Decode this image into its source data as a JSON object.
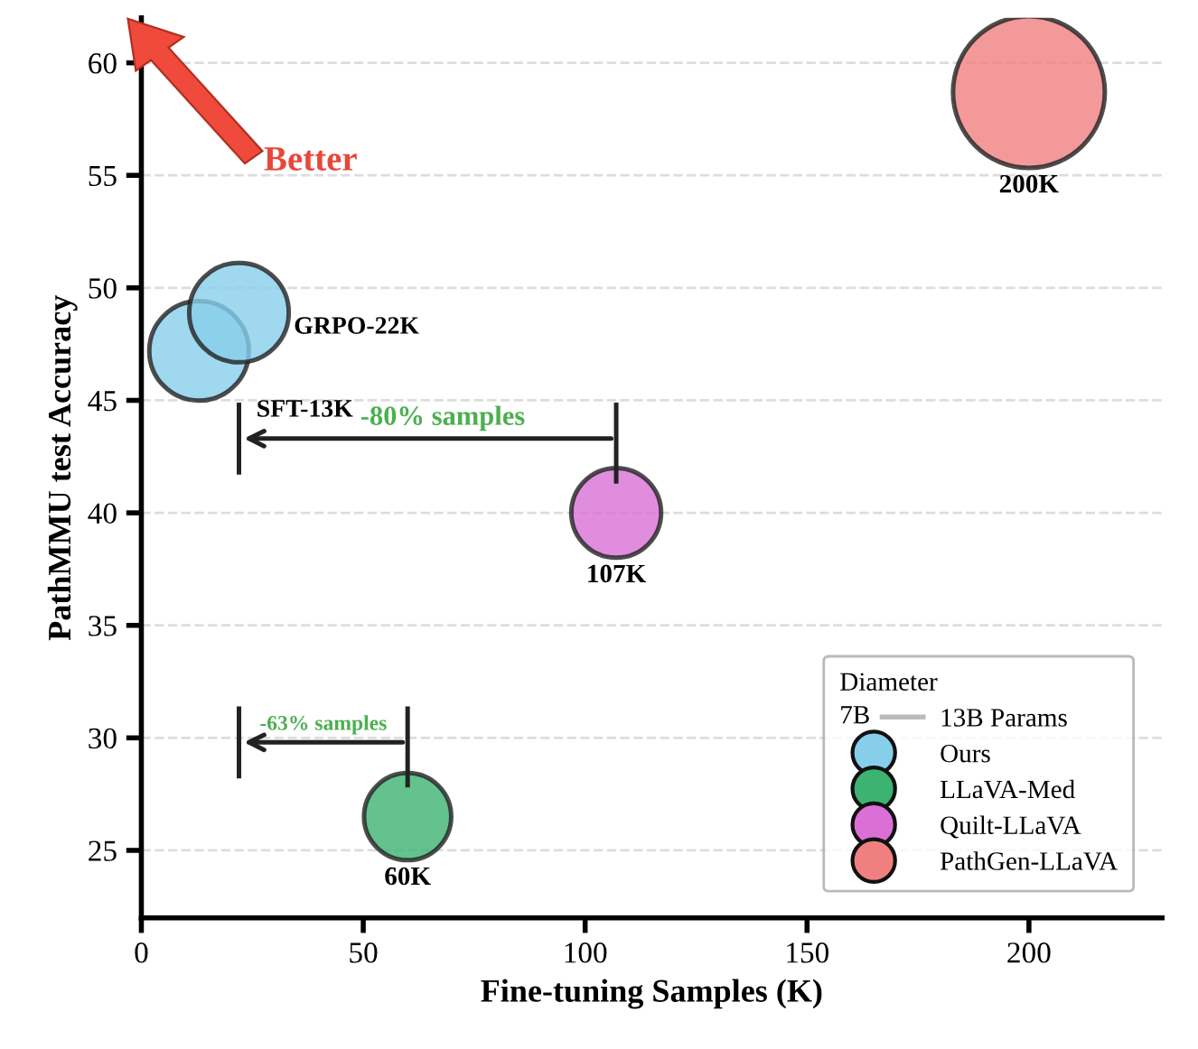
{
  "chart_data": {
    "type": "bubble",
    "xlabel": "Fine-tuning Samples (K)",
    "ylabel": "PathMMU test Accuracy",
    "legend_title": "Diameter",
    "xlim": [
      0,
      230
    ],
    "ylim": [
      22,
      62
    ],
    "xticks": [
      0,
      50,
      100,
      150,
      200
    ],
    "yticks": [
      25,
      30,
      35,
      40,
      45,
      50,
      55,
      60
    ],
    "grid": "y",
    "legend": "bottom right",
    "marker": "circle",
    "series": [
      {
        "name": "Ours",
        "color": "#87ceeb",
        "x": [
          13,
          22
        ],
        "values": [
          47.2,
          48.9
        ],
        "sizes": [
          0.43,
          0.43
        ]
      },
      {
        "name": "LLaVA-Med",
        "color": "#3cb371",
        "x": [
          60
        ],
        "values": [
          26.5
        ],
        "sizes": [
          0.33
        ]
      },
      {
        "name": "Quilt-LLaVA",
        "color": "#da70d6",
        "x": [
          107
        ],
        "values": [
          40.0
        ],
        "sizes": [
          0.35
        ]
      },
      {
        "name": "PathGen-LLaVA",
        "color": "#f08080",
        "x": [
          200
        ],
        "values": [
          58.7
        ],
        "sizes": [
          1.0
        ]
      }
    ],
    "annotations": [
      "Better",
      "-80% samples",
      "-63% samples",
      "7B",
      "13B Params",
      "SFT-13K",
      "GRPO-22K",
      "60K",
      "107K",
      "200K"
    ]
  }
}
